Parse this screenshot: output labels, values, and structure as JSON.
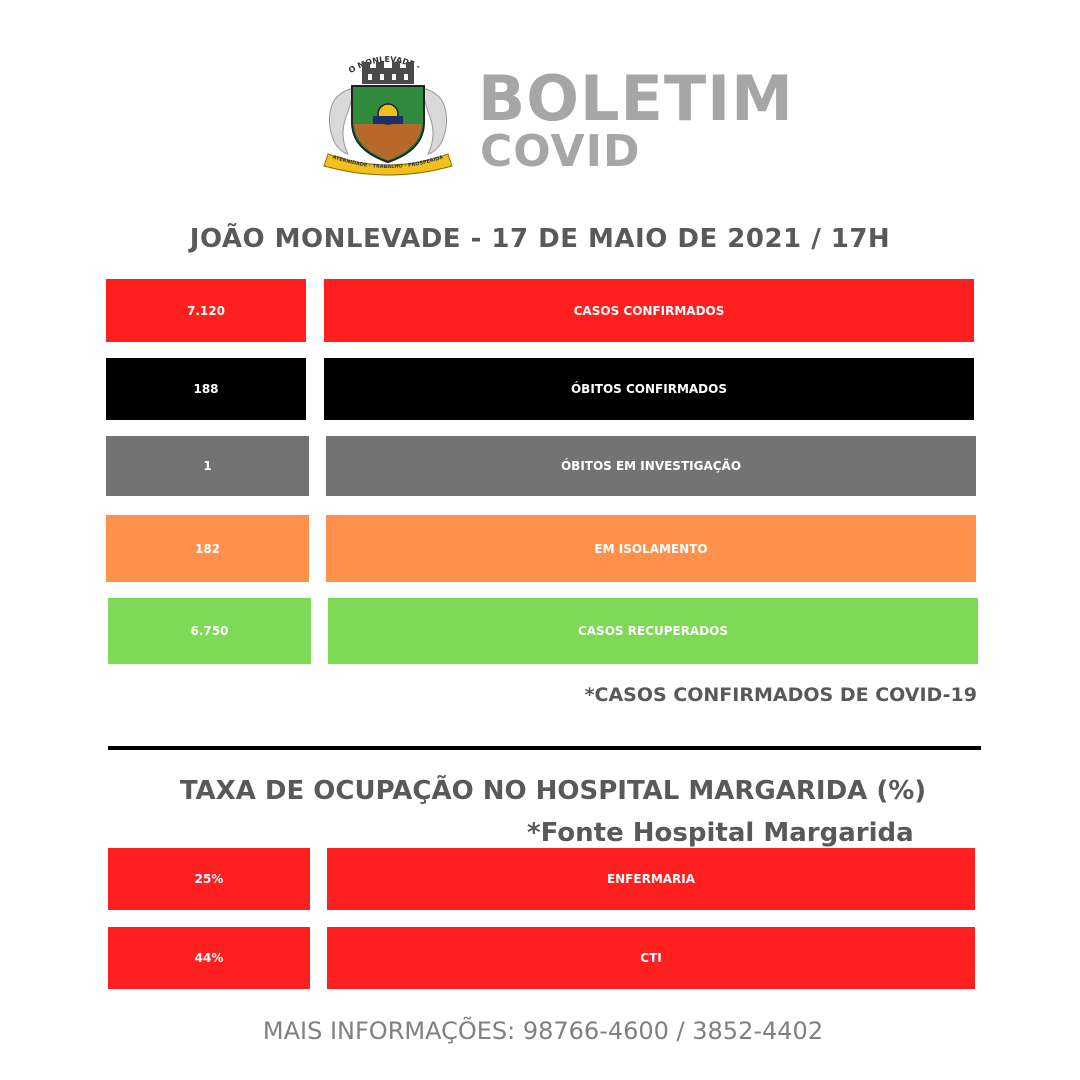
{
  "header": {
    "title": "BOLETIM",
    "subtitle": "COVID",
    "crest_text_top": "JOÃO MONLEVADE - M.G.",
    "crest_text_ribbon": "FRATERNIDADE · TRABALHO · PROSPERIDADE"
  },
  "dateline": "JOÃO MONLEVADE -  17 DE MAIO DE 2021 / 17H",
  "stats": [
    {
      "value": "7.120",
      "label": "CASOS CONFIRMADOS",
      "color": "#ff1f1f"
    },
    {
      "value": "188",
      "label": "ÓBITOS CONFIRMADOS",
      "color": "#000000"
    },
    {
      "value": "1",
      "label": "ÓBITOS EM INVESTIGAÇÃO",
      "color": "#737373"
    },
    {
      "value": "182",
      "label": "EM ISOLAMENTO",
      "color": "#ff914d"
    },
    {
      "value": "6.750",
      "label": "CASOS RECUPERADOS",
      "color": "#7ed957"
    }
  ],
  "note": "*CASOS CONFIRMADOS DE COVID-19",
  "occupancy": {
    "title": "TAXA DE OCUPAÇÃO NO HOSPITAL MARGARIDA (%)",
    "source": "*Fonte Hospital Margarida",
    "rows": [
      {
        "value": "25%",
        "label": "ENFERMARIA",
        "color": "#ff1f1f"
      },
      {
        "value": "44%",
        "label": "CTI",
        "color": "#ff1f1f"
      }
    ]
  },
  "footer": "MAIS INFORMAÇÕES: 98766-4600  /  3852-4402"
}
